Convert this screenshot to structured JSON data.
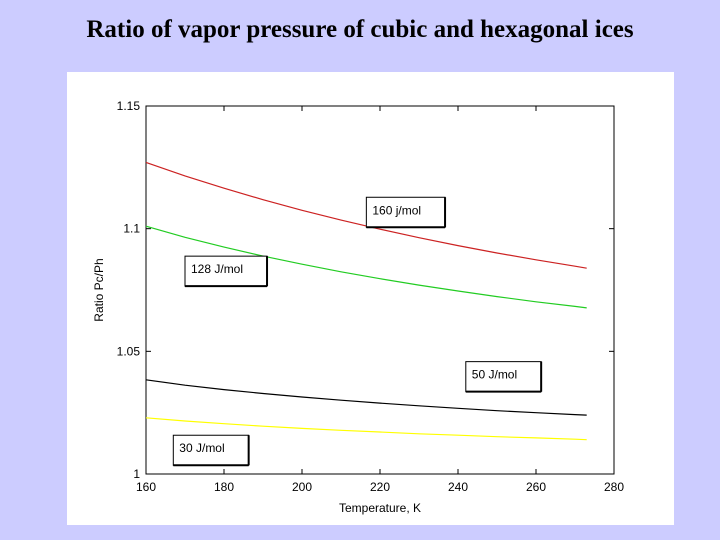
{
  "slide": {
    "title": "Ratio of vapor pressure of cubic and hexagonal ices",
    "background": "#ccccff"
  },
  "chart_data": {
    "type": "line",
    "xlabel": "Temperature, K",
    "ylabel": "Ratio Pc/Ph",
    "xlim": [
      160,
      280
    ],
    "ylim": [
      1,
      1.15
    ],
    "xticks": [
      "160",
      "180",
      "200",
      "220",
      "240",
      "260",
      "280"
    ],
    "yticks": [
      "1",
      "1.05",
      "1.1",
      "1.15"
    ],
    "grid": false,
    "series": [
      {
        "color": "#cc2222",
        "x": [
          160,
          170,
          180,
          190,
          200,
          210,
          220,
          230,
          240,
          250,
          260,
          270,
          273
        ],
        "values": [
          1.127,
          1.1215,
          1.1165,
          1.1118,
          1.1075,
          1.1035,
          1.0998,
          1.0963,
          1.0931,
          1.0901,
          1.0873,
          1.0847,
          1.0839
        ]
      },
      {
        "color": "#22cc22",
        "x": [
          160,
          170,
          180,
          190,
          200,
          210,
          220,
          230,
          240,
          250,
          260,
          270,
          273
        ],
        "values": [
          1.101,
          1.0965,
          1.0925,
          1.0888,
          1.0855,
          1.0824,
          1.0796,
          1.077,
          1.0746,
          1.0723,
          1.0702,
          1.0683,
          1.0677
        ]
      },
      {
        "color": "#000000",
        "x": [
          160,
          170,
          180,
          190,
          200,
          210,
          220,
          230,
          240,
          250,
          260,
          270,
          273
        ],
        "values": [
          1.0384,
          1.0362,
          1.0344,
          1.0328,
          1.0314,
          1.0301,
          1.0289,
          1.0278,
          1.0268,
          1.0258,
          1.025,
          1.0242,
          1.024
        ]
      },
      {
        "color": "#ffff00",
        "x": [
          160,
          170,
          180,
          190,
          200,
          210,
          220,
          230,
          240,
          250,
          260,
          270,
          273
        ],
        "values": [
          1.0229,
          1.0216,
          1.0205,
          1.0195,
          1.0186,
          1.0178,
          1.0171,
          1.0164,
          1.0158,
          1.0152,
          1.0147,
          1.0142,
          1.014
        ]
      }
    ],
    "annotations": [
      {
        "text": "160 j/mol",
        "x": 216.5,
        "y": 1.1075
      },
      {
        "text": "128 J/mol",
        "x": 170,
        "y": 1.0835
      },
      {
        "text": "50 J/mol",
        "x": 242,
        "y": 1.0405
      },
      {
        "text": "30 J/mol",
        "x": 167,
        "y": 1.0105
      }
    ]
  }
}
